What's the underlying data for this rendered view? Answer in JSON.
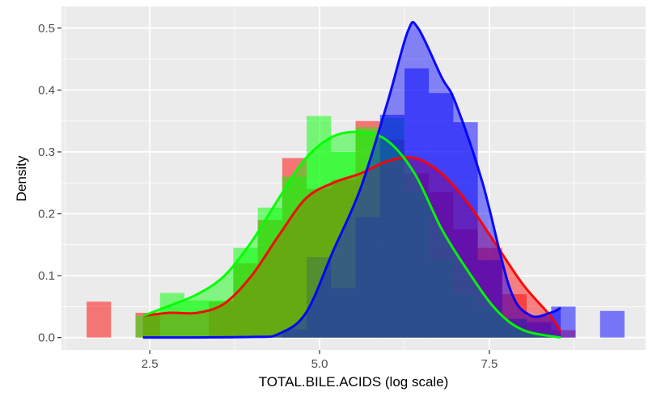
{
  "chart_data": {
    "type": "histogram-density",
    "title": "",
    "xlabel": "TOTAL.BILE.ACIDS   (log scale)",
    "ylabel": "Density",
    "xlim": [
      1.2,
      9.8
    ],
    "ylim": [
      -0.02,
      0.535
    ],
    "x_ticks": [
      2.5,
      5.0,
      7.5
    ],
    "x_tick_labels": [
      "2.5",
      "5.0",
      "7.5"
    ],
    "y_ticks": [
      0.0,
      0.1,
      0.2,
      0.3,
      0.4,
      0.5
    ],
    "y_tick_labels": [
      "0.0",
      "0.1",
      "0.2",
      "0.3",
      "0.4",
      "0.5"
    ],
    "grid": true,
    "legend": "none",
    "bin_width": 0.36,
    "series": [
      {
        "color": "#ff0000",
        "histogram": [
          [
            1.75,
            0.058
          ],
          [
            2.47,
            0.04
          ],
          [
            2.83,
            0.0
          ],
          [
            3.19,
            0.0
          ],
          [
            3.55,
            0.058
          ],
          [
            3.91,
            0.12
          ],
          [
            4.27,
            0.19
          ],
          [
            4.63,
            0.29
          ],
          [
            4.99,
            0.24
          ],
          [
            5.35,
            0.255
          ],
          [
            5.71,
            0.35
          ],
          [
            6.07,
            0.32
          ],
          [
            6.43,
            0.265
          ],
          [
            6.79,
            0.235
          ],
          [
            7.15,
            0.175
          ],
          [
            7.51,
            0.145
          ],
          [
            7.87,
            0.07
          ],
          [
            8.23,
            0.035
          ],
          [
            8.59,
            0.012
          ]
        ],
        "density": [
          [
            2.4,
            0.035
          ],
          [
            2.8,
            0.04
          ],
          [
            3.2,
            0.04
          ],
          [
            3.6,
            0.055
          ],
          [
            4.0,
            0.1
          ],
          [
            4.4,
            0.165
          ],
          [
            4.8,
            0.225
          ],
          [
            5.2,
            0.25
          ],
          [
            5.6,
            0.265
          ],
          [
            6.0,
            0.285
          ],
          [
            6.4,
            0.29
          ],
          [
            6.8,
            0.265
          ],
          [
            7.2,
            0.215
          ],
          [
            7.6,
            0.15
          ],
          [
            8.0,
            0.085
          ],
          [
            8.4,
            0.035
          ],
          [
            8.55,
            0.01
          ]
        ]
      },
      {
        "color": "#00ff00",
        "histogram": [
          [
            2.47,
            0.035
          ],
          [
            2.83,
            0.072
          ],
          [
            3.19,
            0.06
          ],
          [
            3.55,
            0.06
          ],
          [
            3.91,
            0.145
          ],
          [
            4.27,
            0.21
          ],
          [
            4.63,
            0.26
          ],
          [
            4.99,
            0.358
          ],
          [
            5.35,
            0.3
          ],
          [
            5.71,
            0.34
          ],
          [
            6.07,
            0.355
          ],
          [
            6.43,
            0.235
          ],
          [
            6.79,
            0.125
          ],
          [
            7.15,
            0.07
          ],
          [
            7.51,
            0.05
          ],
          [
            7.87,
            0.03
          ],
          [
            8.23,
            0.01
          ]
        ],
        "density": [
          [
            2.4,
            0.035
          ],
          [
            2.8,
            0.052
          ],
          [
            3.2,
            0.07
          ],
          [
            3.6,
            0.1
          ],
          [
            4.0,
            0.155
          ],
          [
            4.4,
            0.225
          ],
          [
            4.8,
            0.29
          ],
          [
            5.2,
            0.325
          ],
          [
            5.6,
            0.332
          ],
          [
            6.0,
            0.318
          ],
          [
            6.4,
            0.265
          ],
          [
            6.8,
            0.175
          ],
          [
            7.2,
            0.105
          ],
          [
            7.6,
            0.045
          ],
          [
            8.0,
            0.012
          ],
          [
            8.55,
            0.0
          ]
        ]
      },
      {
        "color": "#0000ff",
        "histogram": [
          [
            4.63,
            0.013
          ],
          [
            4.99,
            0.13
          ],
          [
            5.35,
            0.08
          ],
          [
            5.71,
            0.195
          ],
          [
            6.07,
            0.36
          ],
          [
            6.43,
            0.435
          ],
          [
            6.79,
            0.395
          ],
          [
            7.15,
            0.348
          ],
          [
            7.51,
            0.125
          ],
          [
            7.87,
            0.03
          ],
          [
            8.23,
            0.025
          ],
          [
            8.59,
            0.05
          ],
          [
            9.31,
            0.043
          ]
        ],
        "density": [
          [
            2.4,
            0.0
          ],
          [
            4.0,
            0.001
          ],
          [
            4.4,
            0.006
          ],
          [
            4.8,
            0.04
          ],
          [
            5.2,
            0.14
          ],
          [
            5.6,
            0.24
          ],
          [
            6.0,
            0.38
          ],
          [
            6.3,
            0.495
          ],
          [
            6.45,
            0.5
          ],
          [
            6.8,
            0.42
          ],
          [
            7.0,
            0.38
          ],
          [
            7.4,
            0.25
          ],
          [
            7.8,
            0.08
          ],
          [
            8.1,
            0.036
          ],
          [
            8.4,
            0.04
          ],
          [
            8.55,
            0.048
          ]
        ]
      }
    ]
  }
}
